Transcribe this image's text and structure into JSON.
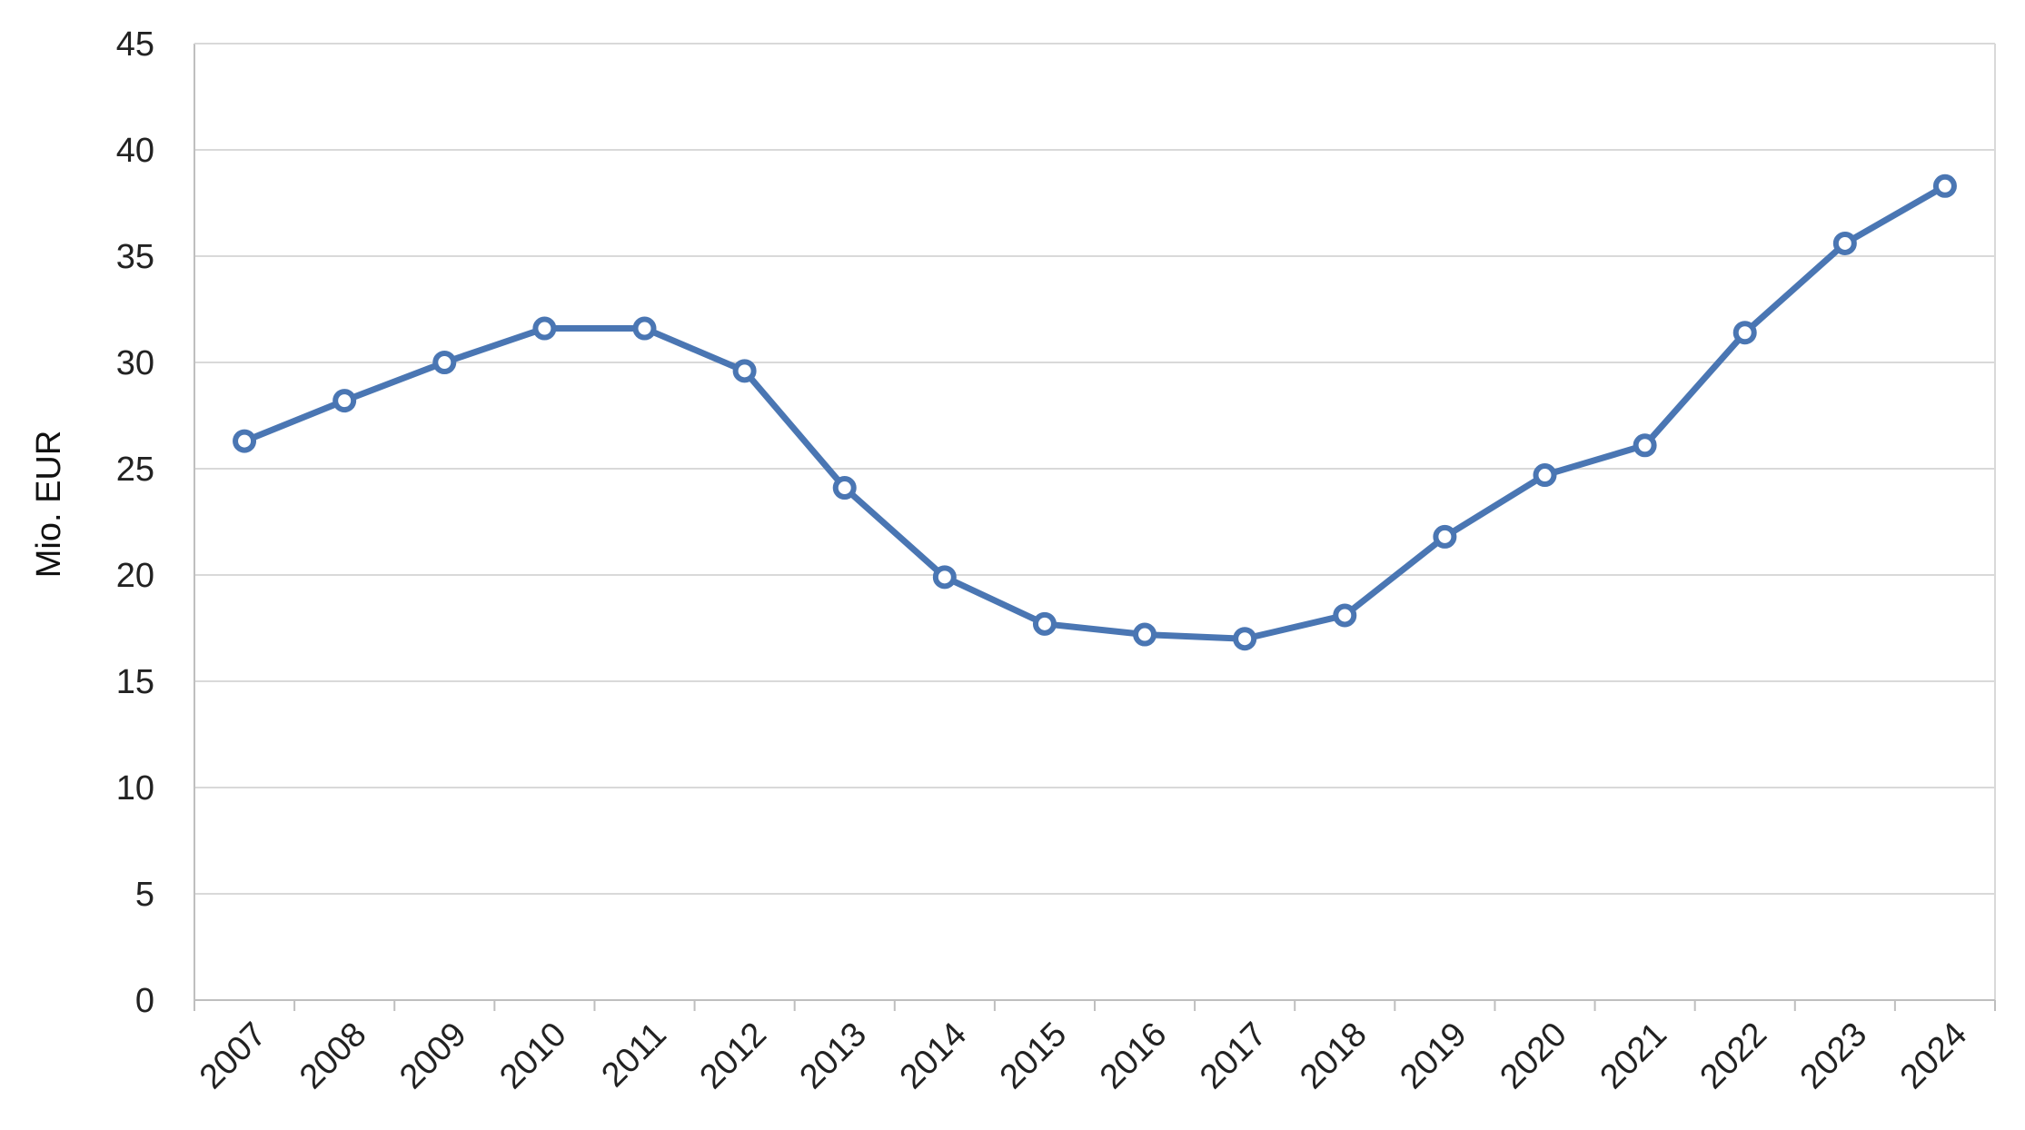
{
  "chart_data": {
    "type": "line",
    "title": "",
    "xlabel": "",
    "ylabel": "Mio. EUR",
    "ylim": [
      0,
      45
    ],
    "y_ticks": [
      0,
      5,
      10,
      15,
      20,
      25,
      30,
      35,
      40,
      45
    ],
    "grid": true,
    "legend": "none",
    "categories": [
      "2007",
      "2008",
      "2009",
      "2010",
      "2011",
      "2012",
      "2013",
      "2014",
      "2015",
      "2016",
      "2017",
      "2018",
      "2019",
      "2020",
      "2021",
      "2022",
      "2023",
      "2024"
    ],
    "series": [
      {
        "values": [
          26.3,
          28.2,
          30.0,
          31.6,
          31.6,
          29.6,
          24.1,
          19.9,
          17.7,
          17.2,
          17.0,
          18.1,
          21.8,
          24.7,
          26.1,
          31.4,
          35.6,
          38.3
        ],
        "color": "#4A76B3"
      }
    ],
    "colors": {
      "grid": "#D9D9D9",
      "axis": "#BFBFBF",
      "line": "#4A76B3",
      "marker_fill": "#FFFFFF"
    }
  }
}
